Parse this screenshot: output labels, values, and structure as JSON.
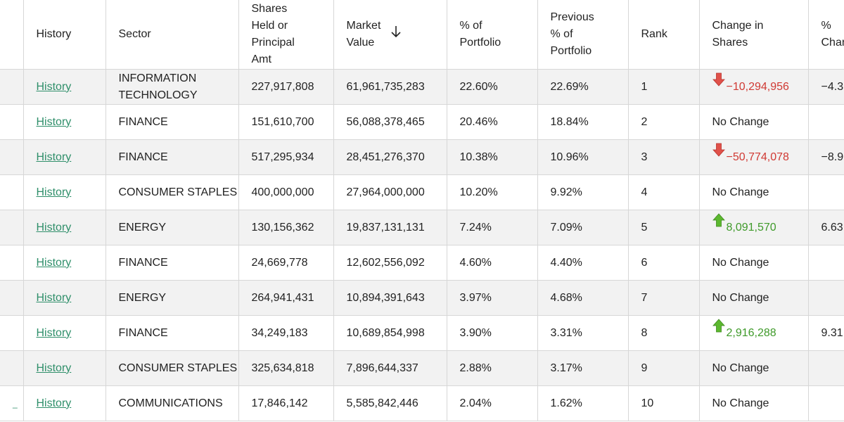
{
  "headers": {
    "history": "History",
    "sector": "Sector",
    "shares": "Shares\nHeld or\nPrincipal\nAmt",
    "market_value": "Market\nValue",
    "pct_portfolio": "% of\nPortfolio",
    "prev_pct": "Previous\n% of\nPortfolio",
    "rank": "Rank",
    "change_shares": "Change in\nShares",
    "pct_change": "%\nChange"
  },
  "icons": {
    "sort": "arrow-down-icon",
    "increase": "green-up-arrow-icon",
    "decrease": "red-down-arrow-icon"
  },
  "colors": {
    "link": "#2f8f6a",
    "negative": "#d03a34",
    "positive": "#3f9a2a",
    "stripe": "#f2f2f2"
  },
  "rows": [
    {
      "history": "History",
      "sector": "INFORMATION TECHNOLOGY",
      "shares": "227,917,808",
      "market_value": "61,961,735,283",
      "pct": "22.60%",
      "prev_pct": "22.69%",
      "rank": "1",
      "change": "−10,294,956",
      "change_dir": "down",
      "pct_change": "−4.3"
    },
    {
      "history": "History",
      "sector": "FINANCE",
      "shares": "151,610,700",
      "market_value": "56,088,378,465",
      "pct": "20.46%",
      "prev_pct": "18.84%",
      "rank": "2",
      "change": "No Change",
      "change_dir": "none",
      "pct_change": ""
    },
    {
      "history": "History",
      "sector": "FINANCE",
      "shares": "517,295,934",
      "market_value": "28,451,276,370",
      "pct": "10.38%",
      "prev_pct": "10.96%",
      "rank": "3",
      "change": "−50,774,078",
      "change_dir": "down",
      "pct_change": "−8.9"
    },
    {
      "history": "History",
      "sector": "CONSUMER STAPLES",
      "shares": "400,000,000",
      "market_value": "27,964,000,000",
      "pct": "10.20%",
      "prev_pct": "9.92%",
      "rank": "4",
      "change": "No Change",
      "change_dir": "none",
      "pct_change": ""
    },
    {
      "history": "History",
      "sector": "ENERGY",
      "shares": "130,156,362",
      "market_value": "19,837,131,131",
      "pct": "7.24%",
      "prev_pct": "7.09%",
      "rank": "5",
      "change": "8,091,570",
      "change_dir": "up",
      "pct_change": "6.63"
    },
    {
      "history": "History",
      "sector": "FINANCE",
      "shares": "24,669,778",
      "market_value": "12,602,556,092",
      "pct": "4.60%",
      "prev_pct": "4.40%",
      "rank": "6",
      "change": "No Change",
      "change_dir": "none",
      "pct_change": ""
    },
    {
      "history": "History",
      "sector": "ENERGY",
      "shares": "264,941,431",
      "market_value": "10,894,391,643",
      "pct": "3.97%",
      "prev_pct": "4.68%",
      "rank": "7",
      "change": "No Change",
      "change_dir": "none",
      "pct_change": ""
    },
    {
      "history": "History",
      "sector": "FINANCE",
      "shares": "34,249,183",
      "market_value": "10,689,854,998",
      "pct": "3.90%",
      "prev_pct": "3.31%",
      "rank": "8",
      "change": "2,916,288",
      "change_dir": "up",
      "pct_change": "9.31"
    },
    {
      "history": "History",
      "sector": "CONSUMER STAPLES",
      "shares": "325,634,818",
      "market_value": "7,896,644,337",
      "pct": "2.88%",
      "prev_pct": "3.17%",
      "rank": "9",
      "change": "No Change",
      "change_dir": "none",
      "pct_change": ""
    },
    {
      "history": "History",
      "sector": "COMMUNICATIONS",
      "shares": "17,846,142",
      "market_value": "5,585,842,446",
      "pct": "2.04%",
      "prev_pct": "1.62%",
      "rank": "10",
      "change": "No Change",
      "change_dir": "none",
      "pct_change": ""
    }
  ]
}
